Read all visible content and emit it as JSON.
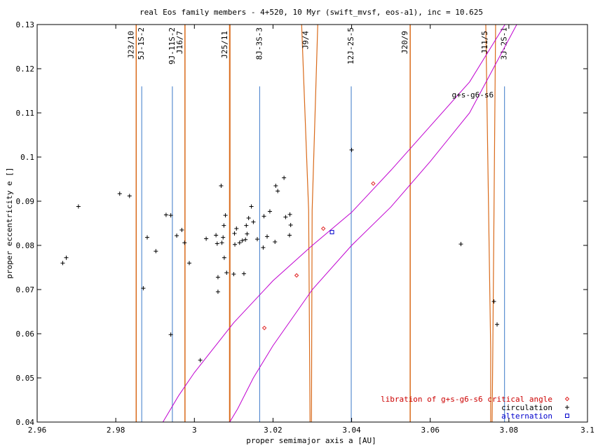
{
  "chart_data": {
    "type": "scatter",
    "title": "real Eos family members - 4+520, 10 Myr (swift_mvsf, eos-a1), inc = 10.625",
    "xlabel": "proper semimajor axis a [AU]",
    "ylabel": "proper eccentricity e []",
    "xlim": [
      2.96,
      3.1
    ],
    "ylim": [
      0.04,
      0.13
    ],
    "xticks": [
      "2.96",
      "2.98",
      "3",
      "3.02",
      "3.04",
      "3.06",
      "3.08",
      "3.1"
    ],
    "yticks": [
      "0.04",
      "0.05",
      "0.06",
      "0.07",
      "0.08",
      "0.09",
      "0.1",
      "0.11",
      "0.12",
      "0.13"
    ],
    "grid": false,
    "legend_position": "bottom-right",
    "colors": {
      "libration": "#e02020",
      "circulation": "#000000",
      "alternation": "#0000cc",
      "blue_lines": "#3a78c8",
      "orange_lines": "#d96a1a",
      "magenta": "#c000d0",
      "legend_libration_text": "#cc0000",
      "legend_circulation_text": "#000000",
      "legend_alternation_text": "#0000cc"
    },
    "series": [
      {
        "name": "libration of g+s-g6-s6 critical angle",
        "marker": "diamond",
        "points": [
          [
            3.0178,
            0.0613
          ],
          [
            3.026,
            0.0732
          ],
          [
            3.0328,
            0.0838
          ],
          [
            3.0455,
            0.094
          ]
        ]
      },
      {
        "name": "circulation",
        "marker": "plus",
        "points": [
          [
            2.9665,
            0.076
          ],
          [
            2.9674,
            0.0772
          ],
          [
            2.9705,
            0.0888
          ],
          [
            2.981,
            0.0917
          ],
          [
            2.9835,
            0.0912
          ],
          [
            2.987,
            0.0703
          ],
          [
            2.988,
            0.0818
          ],
          [
            2.9902,
            0.0787
          ],
          [
            2.9928,
            0.0869
          ],
          [
            2.994,
            0.0868
          ],
          [
            2.994,
            0.0598
          ],
          [
            2.9955,
            0.0822
          ],
          [
            2.9968,
            0.0835
          ],
          [
            2.9975,
            0.0806
          ],
          [
            2.9987,
            0.076
          ],
          [
            3.0015,
            0.054
          ],
          [
            3.003,
            0.0815
          ],
          [
            3.0055,
            0.0823
          ],
          [
            3.0058,
            0.0804
          ],
          [
            3.006,
            0.0728
          ],
          [
            3.006,
            0.0695
          ],
          [
            3.0068,
            0.0935
          ],
          [
            3.007,
            0.0806
          ],
          [
            3.0073,
            0.0818
          ],
          [
            3.0075,
            0.0845
          ],
          [
            3.0076,
            0.0772
          ],
          [
            3.0079,
            0.0868
          ],
          [
            3.0082,
            0.0738
          ],
          [
            3.01,
            0.0735
          ],
          [
            3.0102,
            0.0827
          ],
          [
            3.0103,
            0.0802
          ],
          [
            3.0107,
            0.0838
          ],
          [
            3.0115,
            0.0806
          ],
          [
            3.0122,
            0.0811
          ],
          [
            3.0126,
            0.0736
          ],
          [
            3.013,
            0.0813
          ],
          [
            3.0132,
            0.0845
          ],
          [
            3.0134,
            0.0826
          ],
          [
            3.0138,
            0.0862
          ],
          [
            3.0145,
            0.0888
          ],
          [
            3.015,
            0.0853
          ],
          [
            3.016,
            0.0814
          ],
          [
            3.0175,
            0.0795
          ],
          [
            3.0177,
            0.0866
          ],
          [
            3.0185,
            0.082
          ],
          [
            3.0192,
            0.0877
          ],
          [
            3.0205,
            0.0808
          ],
          [
            3.0207,
            0.0935
          ],
          [
            3.0212,
            0.0923
          ],
          [
            3.0228,
            0.0953
          ],
          [
            3.0232,
            0.0864
          ],
          [
            3.0242,
            0.0823
          ],
          [
            3.0243,
            0.087
          ],
          [
            3.0245,
            0.0846
          ],
          [
            3.04,
            0.1016
          ],
          [
            3.0678,
            0.0803
          ],
          [
            3.0762,
            0.0673
          ],
          [
            3.077,
            0.0621
          ]
        ]
      },
      {
        "name": "alternation",
        "marker": "square",
        "points": [
          [
            3.035,
            0.083
          ]
        ]
      }
    ],
    "blue_lines": [
      {
        "label": "5J-1S-2",
        "a": 2.9866
      },
      {
        "label": "9J-11S-2",
        "a": 2.9944
      },
      {
        "label": "8J-3S-3",
        "a": 3.0166
      },
      {
        "label": "12J-2S-5",
        "a": 3.0399
      },
      {
        "label": "3J-2S-1",
        "a": 3.0789
      }
    ],
    "orange_lines": [
      {
        "label": "J23/10",
        "a": 2.9852
      },
      {
        "label": "J16/7",
        "a": 2.9976
      },
      {
        "label": "J25/11",
        "a": 3.009
      },
      {
        "label": "J9/4",
        "a": 3.0296
      },
      {
        "label": "J20/9",
        "a": 3.0549
      },
      {
        "label": "J11/5",
        "a": 3.0752
      }
    ],
    "secular_resonance_label": "g+s-g6-s6",
    "secular_resonance_lower": [
      [
        2.992,
        0.04
      ],
      [
        2.996,
        0.046
      ],
      [
        3.0,
        0.0512
      ],
      [
        3.01,
        0.0625
      ],
      [
        3.02,
        0.072
      ],
      [
        3.03,
        0.08
      ],
      [
        3.04,
        0.0875
      ],
      [
        3.05,
        0.097
      ],
      [
        3.06,
        0.107
      ],
      [
        3.07,
        0.117
      ],
      [
        3.079,
        0.13
      ]
    ],
    "secular_resonance_upper": [
      [
        3.009,
        0.04
      ],
      [
        3.011,
        0.043
      ],
      [
        3.015,
        0.05
      ],
      [
        3.02,
        0.0573
      ],
      [
        3.03,
        0.07
      ],
      [
        3.04,
        0.08
      ],
      [
        3.05,
        0.0887
      ],
      [
        3.06,
        0.099
      ],
      [
        3.07,
        0.11
      ],
      [
        3.082,
        0.13
      ]
    ]
  }
}
